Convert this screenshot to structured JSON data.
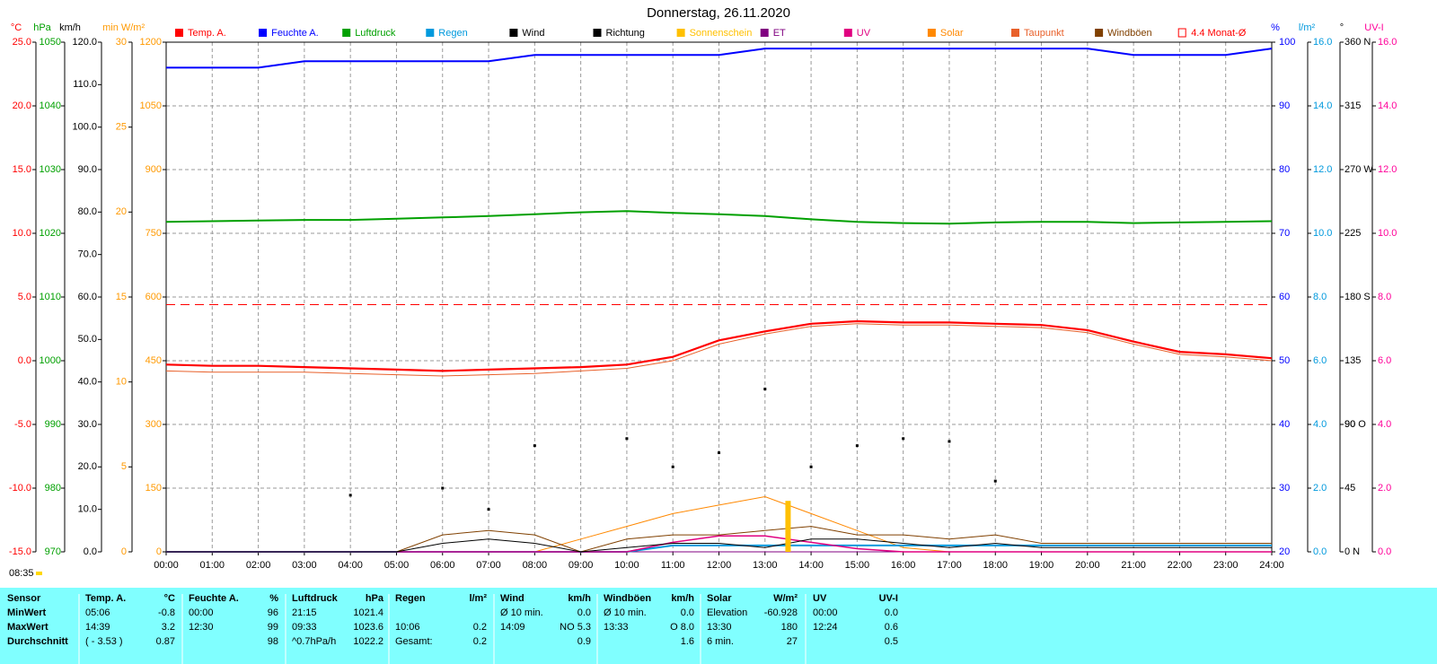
{
  "chart_data": {
    "type": "line",
    "title": "Donnerstag, 26.11.2020",
    "timestamp": "08:35",
    "grid": true,
    "x": [
      0,
      1,
      2,
      3,
      4,
      5,
      6,
      7,
      8,
      9,
      10,
      11,
      12,
      13,
      14,
      15,
      16,
      17,
      18,
      19,
      20,
      21,
      22,
      23,
      24
    ],
    "xlim": [
      0,
      24
    ],
    "xticks": [
      {
        "value": 0,
        "label": "00:00"
      },
      {
        "value": 1,
        "label": "01:00"
      },
      {
        "value": 2,
        "label": "02:00"
      },
      {
        "value": 3,
        "label": "03:00"
      },
      {
        "value": 4,
        "label": "04:00"
      },
      {
        "value": 5,
        "label": "05:00"
      },
      {
        "value": 6,
        "label": "06:00"
      },
      {
        "value": 7,
        "label": "07:00"
      },
      {
        "value": 8,
        "label": "08:00"
      },
      {
        "value": 9,
        "label": "09:00"
      },
      {
        "value": 10,
        "label": "10:00"
      },
      {
        "value": 11,
        "label": "11:00"
      },
      {
        "value": 12,
        "label": "12:00"
      },
      {
        "value": 13,
        "label": "13:00"
      },
      {
        "value": 14,
        "label": "14:00"
      },
      {
        "value": 15,
        "label": "15:00"
      },
      {
        "value": 16,
        "label": "16:00"
      },
      {
        "value": 17,
        "label": "17:00"
      },
      {
        "value": 18,
        "label": "18:00"
      },
      {
        "value": 19,
        "label": "19:00"
      },
      {
        "value": 20,
        "label": "20:00"
      },
      {
        "value": 21,
        "label": "21:00"
      },
      {
        "value": 22,
        "label": "22:00"
      },
      {
        "value": 23,
        "label": "23:00"
      },
      {
        "value": 24,
        "label": "24:00"
      }
    ],
    "axes": [
      {
        "unit": "°C",
        "color": "#ff0000",
        "lim": [
          -15,
          25
        ],
        "ticks": [
          {
            "value": -15,
            "label": "-15.0"
          },
          {
            "value": -10,
            "label": "-10.0"
          },
          {
            "value": -5,
            "label": "-5.0"
          },
          {
            "value": 0,
            "label": "0.0"
          },
          {
            "value": 5,
            "label": "5.0"
          },
          {
            "value": 10,
            "label": "10.0"
          },
          {
            "value": 15,
            "label": "15.0"
          },
          {
            "value": 20,
            "label": "20.0"
          },
          {
            "value": 25,
            "label": "25.0"
          }
        ]
      },
      {
        "unit": "hPa",
        "color": "#00a000",
        "lim": [
          970,
          1050
        ],
        "ticks": [
          970,
          980,
          990,
          1000,
          1010,
          1020,
          1030,
          1040,
          1050
        ]
      },
      {
        "unit": "km/h",
        "color": "#000000",
        "lim": [
          0,
          120
        ],
        "ticks": [
          {
            "value": 0,
            "label": "0.0"
          },
          {
            "value": 10,
            "label": "10.0"
          },
          {
            "value": 20,
            "label": "20.0"
          },
          {
            "value": 30,
            "label": "30.0"
          },
          {
            "value": 40,
            "label": "40.0"
          },
          {
            "value": 50,
            "label": "50.0"
          },
          {
            "value": 60,
            "label": "60.0"
          },
          {
            "value": 70,
            "label": "70.0"
          },
          {
            "value": 80,
            "label": "80.0"
          },
          {
            "value": 90,
            "label": "90.0"
          },
          {
            "value": 100,
            "label": "100.0"
          },
          {
            "value": 110,
            "label": "110.0"
          },
          {
            "value": 120,
            "label": "120.0"
          }
        ]
      },
      {
        "unit": "min",
        "color": "#ff9900",
        "lim": [
          0,
          30
        ],
        "ticks": [
          0,
          5,
          10,
          15,
          20,
          25,
          30
        ]
      },
      {
        "unit": "W/m²",
        "color": "#ff9900",
        "lim": [
          0,
          1200
        ],
        "ticks": [
          0,
          150,
          300,
          450,
          600,
          750,
          900,
          1050,
          1200
        ]
      },
      {
        "unit": "%",
        "color": "#0000ff",
        "lim": [
          20,
          100
        ],
        "ticks": [
          20,
          30,
          40,
          50,
          60,
          70,
          80,
          90,
          100
        ]
      },
      {
        "unit": "l/m²",
        "color": "#0099dd",
        "lim": [
          0,
          16
        ],
        "ticks": [
          {
            "value": 0,
            "label": "0.0"
          },
          {
            "value": 2,
            "label": "2.0"
          },
          {
            "value": 4,
            "label": "4.0"
          },
          {
            "value": 6,
            "label": "6.0"
          },
          {
            "value": 8,
            "label": "8.0"
          },
          {
            "value": 10,
            "label": "10.0"
          },
          {
            "value": 12,
            "label": "12.0"
          },
          {
            "value": 14,
            "label": "14.0"
          },
          {
            "value": 16,
            "label": "16.0"
          }
        ]
      },
      {
        "unit": "°",
        "color": "#000000",
        "lim": [
          0,
          360
        ],
        "ticks": [
          {
            "value": 0,
            "label": "0 N"
          },
          45,
          90,
          {
            "value": 90,
            "label": "90 O"
          },
          135,
          {
            "value": 180,
            "label": "180 S"
          },
          225,
          {
            "value": 270,
            "label": "270 W"
          },
          315,
          {
            "value": 360,
            "label": "360 N"
          }
        ]
      },
      {
        "unit": "UV-I",
        "color": "#ff0099",
        "lim": [
          0,
          16
        ],
        "ticks": [
          {
            "value": 0,
            "label": "0.0"
          },
          {
            "value": 2,
            "label": "2.0"
          },
          {
            "value": 4,
            "label": "4.0"
          },
          {
            "value": 6,
            "label": "6.0"
          },
          {
            "value": 8,
            "label": "8.0"
          },
          {
            "value": 10,
            "label": "10.0"
          },
          {
            "value": 12,
            "label": "12.0"
          },
          {
            "value": 14,
            "label": "14.0"
          },
          {
            "value": 16,
            "label": "16.0"
          }
        ]
      }
    ],
    "series": [
      {
        "name": "Temp. A.",
        "color": "#ff0000",
        "axis": 0,
        "kind": "line",
        "width": 2.2,
        "values": [
          -0.3,
          -0.4,
          -0.4,
          -0.5,
          -0.6,
          -0.7,
          -0.8,
          -0.7,
          -0.6,
          -0.5,
          -0.3,
          0.3,
          1.6,
          2.3,
          2.9,
          3.1,
          3.0,
          3.0,
          2.9,
          2.8,
          2.4,
          1.5,
          0.7,
          0.5,
          0.2
        ]
      },
      {
        "name": "Feuchte A.",
        "color": "#0000ff",
        "axis": 5,
        "kind": "line",
        "width": 2,
        "values": [
          96,
          96,
          96,
          97,
          97,
          97,
          97,
          97,
          98,
          98,
          98,
          98,
          98,
          99,
          99,
          99,
          99,
          99,
          99,
          99,
          99,
          98,
          98,
          98,
          99
        ]
      },
      {
        "name": "Luftdruck",
        "color": "#00a000",
        "axis": 1,
        "kind": "line",
        "width": 2,
        "values": [
          1021.8,
          1021.9,
          1022.0,
          1022.1,
          1022.1,
          1022.3,
          1022.5,
          1022.7,
          1023.0,
          1023.3,
          1023.5,
          1023.2,
          1023.0,
          1022.7,
          1022.2,
          1021.8,
          1021.6,
          1021.5,
          1021.7,
          1021.8,
          1021.8,
          1021.6,
          1021.7,
          1021.8,
          1021.9
        ]
      },
      {
        "name": "Regen",
        "color": "#0099dd",
        "axis": 6,
        "kind": "line",
        "width": 2,
        "values": [
          0,
          0,
          0,
          0,
          0,
          0,
          0,
          0,
          0,
          0,
          0,
          0.2,
          0.2,
          0.2,
          0.2,
          0.2,
          0.2,
          0.2,
          0.2,
          0.2,
          0.2,
          0.2,
          0.2,
          0.2,
          0.2
        ]
      },
      {
        "name": "Wind",
        "color": "#000000",
        "axis": 2,
        "kind": "line",
        "width": 1,
        "values": [
          0,
          0,
          0,
          0,
          0,
          0,
          2,
          3,
          2,
          0,
          1,
          2,
          2,
          1,
          3,
          3,
          2,
          1,
          2,
          1,
          1,
          1,
          1,
          1,
          1
        ]
      },
      {
        "name": "Richtung",
        "color": "#000000",
        "axis": 7,
        "kind": "scatter",
        "values": [
          null,
          null,
          null,
          null,
          40,
          null,
          45,
          30,
          75,
          null,
          80,
          60,
          70,
          115,
          60,
          75,
          80,
          78,
          50,
          null,
          null,
          null,
          null,
          null,
          null
        ]
      },
      {
        "name": "Sonnenschein",
        "color": "#ffc000",
        "axis": 3,
        "kind": "bar",
        "values": [
          0,
          0,
          0,
          0,
          0,
          0,
          0,
          0,
          0,
          0,
          0,
          0,
          0,
          3,
          0,
          0,
          0,
          0,
          0,
          0,
          0,
          0,
          0,
          0,
          0
        ]
      },
      {
        "name": "ET",
        "color": "#800080",
        "axis": 6,
        "kind": "line",
        "width": 1,
        "values": [
          0,
          0,
          0,
          0,
          0,
          0,
          0,
          0,
          0,
          0,
          0,
          0,
          0,
          0,
          0,
          0,
          0,
          0,
          0,
          0,
          0,
          0,
          0,
          0,
          0
        ]
      },
      {
        "name": "UV",
        "color": "#e00080",
        "axis": 8,
        "kind": "line",
        "width": 1.5,
        "values": [
          0,
          0,
          0,
          0,
          0,
          0,
          0,
          0,
          0,
          0,
          0,
          0.3,
          0.5,
          0.5,
          0.3,
          0.1,
          0,
          0,
          0,
          0,
          0,
          0,
          0,
          0,
          0
        ]
      },
      {
        "name": "Solar",
        "color": "#ff8800",
        "axis": 4,
        "kind": "line",
        "width": 1,
        "values": [
          0,
          0,
          0,
          0,
          0,
          0,
          0,
          0,
          0,
          30,
          60,
          90,
          110,
          130,
          90,
          50,
          10,
          0,
          0,
          0,
          0,
          0,
          0,
          0,
          0
        ]
      },
      {
        "name": "Taupunkt",
        "color": "#e8602a",
        "axis": 0,
        "kind": "line",
        "width": 1,
        "values": [
          -0.8,
          -0.9,
          -0.9,
          -0.9,
          -1.0,
          -1.1,
          -1.2,
          -1.1,
          -1.0,
          -0.8,
          -0.6,
          0.0,
          1.3,
          2.1,
          2.7,
          2.9,
          2.8,
          2.8,
          2.7,
          2.6,
          2.2,
          1.3,
          0.5,
          0.3,
          0.0
        ]
      },
      {
        "name": "Windböen",
        "color": "#804000",
        "axis": 2,
        "kind": "line",
        "width": 1,
        "values": [
          0,
          0,
          0,
          0,
          0,
          0,
          4,
          5,
          4,
          0,
          3,
          4,
          4,
          5,
          6,
          4,
          4,
          3,
          4,
          2,
          2,
          2,
          2,
          2,
          2
        ]
      },
      {
        "name": "4.4 Monat-Ø",
        "color": "#ff0000",
        "axis": 0,
        "kind": "hline",
        "value": 4.4
      }
    ]
  },
  "table": {
    "header": [
      "Sensor",
      "Temp. A.",
      "°C",
      "Feuchte A.",
      "%",
      "Luftdruck",
      "hPa",
      "Regen",
      "l/m²",
      "Wind",
      "km/h",
      "Windböen",
      "km/h",
      "Solar",
      "W/m²",
      "UV",
      "UV-I"
    ],
    "rows": [
      [
        "MinWert",
        "05:06",
        "-0.8",
        "00:00",
        "96",
        "21:15",
        "1021.4",
        null,
        null,
        "Ø 10 min.",
        "0.0",
        "Ø 10 min.",
        "0.0",
        "Elevation",
        "-60.928",
        "00:00",
        "0.0"
      ],
      [
        "MaxWert",
        "14:39",
        "3.2",
        "12:30",
        "99",
        "09:33",
        "1023.6",
        "10:06",
        "0.2",
        "14:09",
        "NO 5.3",
        "13:33",
        "O 8.0",
        "13:30",
        "180",
        "12:24",
        "0.6"
      ],
      [
        "Durchschnitt",
        "( - 3.53 )",
        "0.87",
        null,
        "98",
        "^0.7hPa/h",
        "1022.2",
        "Gesamt:",
        "0.2",
        null,
        "0.9",
        null,
        "1.6",
        "6 min.",
        "27",
        null,
        "0.5"
      ]
    ]
  }
}
